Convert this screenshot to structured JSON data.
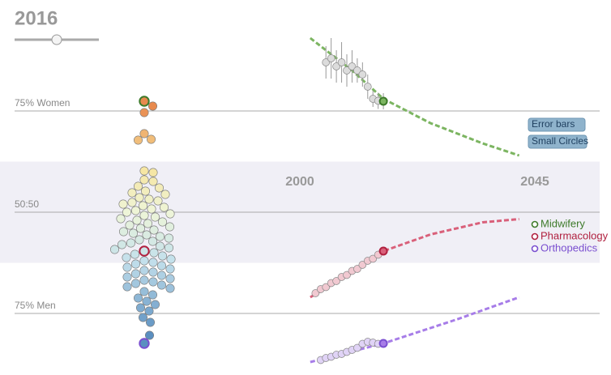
{
  "year_label": "2016",
  "buttons": [
    "Error bars",
    "Small Circles"
  ],
  "chart_data": {
    "type": "beeswarm",
    "ylim": [
      10,
      100
    ],
    "yticks": [
      {
        "value": 75,
        "label": "75% Women"
      },
      {
        "value": 50,
        "label": "50:50"
      },
      {
        "value": 25,
        "label": "75% Men"
      }
    ],
    "band": [
      37.5,
      62.5
    ],
    "xlim": [
      2000,
      2045
    ],
    "xticks": [
      2000,
      2045
    ],
    "color_stops": [
      {
        "value": 76,
        "color": "#e88a4e"
      },
      {
        "value": 62,
        "color": "#f7e39a"
      },
      {
        "value": 50,
        "color": "#eef5d8"
      },
      {
        "value": 38,
        "color": "#c3e0ec"
      },
      {
        "value": 20,
        "color": "#5b8fc0"
      }
    ],
    "values": [
      76.2,
      74.6,
      69.4,
      68.0,
      67.8,
      60.2,
      59.8,
      58.0,
      57.6,
      56.4,
      56.0,
      55.2,
      54.8,
      54.4,
      53.6,
      53.2,
      52.8,
      52.4,
      52.0,
      51.6,
      51.2,
      50.8,
      50.4,
      50.0,
      49.6,
      49.2,
      48.8,
      48.4,
      48.0,
      47.6,
      47.2,
      46.8,
      46.4,
      46.0,
      45.6,
      45.2,
      44.8,
      44.4,
      44.0,
      43.6,
      43.2,
      42.8,
      42.4,
      42.0,
      41.6,
      41.2,
      40.8,
      40.0,
      39.6,
      39.2,
      38.8,
      38.4,
      38.0,
      37.6,
      37.2,
      36.8,
      36.4,
      36.0,
      35.6,
      35.2,
      34.8,
      34.4,
      34.0,
      33.6,
      33.2,
      32.8,
      32.4,
      32.0,
      31.6,
      31.2,
      30.4,
      29.6,
      28.8,
      28.0,
      27.2,
      26.4,
      25.6,
      24.0,
      22.8,
      19.6
    ],
    "series": [
      {
        "name": "Midwifery",
        "color": "#3d7a2a",
        "trend_color": "#7cb561",
        "point_color": "#dcdcdc",
        "x": [
          2005,
          2006,
          2007,
          2008,
          2009,
          2010,
          2011,
          2012,
          2013,
          2014,
          2015,
          2016
        ],
        "values": [
          87,
          88,
          86,
          87,
          85,
          86,
          85,
          84,
          81,
          78,
          77.5,
          77.4
        ],
        "errors": [
          4,
          5,
          4,
          5,
          4,
          4,
          3,
          3,
          3,
          2,
          2,
          2
        ],
        "trend": {
          "x": [
            2002,
            2010,
            2016,
            2025,
            2035,
            2042
          ],
          "values": [
            93,
            85,
            78,
            72,
            67,
            64
          ]
        }
      },
      {
        "name": "Pharmacology",
        "color": "#b0203f",
        "trend_color": "#d9607a",
        "point_color": "#f1c9d1",
        "x": [
          2003,
          2004,
          2005,
          2006,
          2007,
          2008,
          2009,
          2010,
          2011,
          2012,
          2013,
          2014,
          2015,
          2016
        ],
        "values": [
          30,
          31,
          31.5,
          32.5,
          33,
          34,
          34.5,
          35.5,
          36,
          37,
          38,
          38.5,
          39.5,
          40.4
        ],
        "trend": {
          "x": [
            2002,
            2010,
            2016,
            2025,
            2035,
            2042
          ],
          "values": [
            29,
            35,
            40.4,
            44.5,
            47.5,
            48.3
          ]
        }
      },
      {
        "name": "Orthopedics",
        "color": "#7a4fd0",
        "trend_color": "#a77de8",
        "point_color": "#e0d3f6",
        "x": [
          2004,
          2005,
          2006,
          2007,
          2008,
          2009,
          2010,
          2011,
          2012,
          2013,
          2014,
          2015,
          2016
        ],
        "values": [
          13.5,
          14,
          14.3,
          14.8,
          15,
          15.5,
          16,
          16.5,
          17.5,
          18,
          17.8,
          17.5,
          17.6
        ],
        "trend": {
          "x": [
            2002,
            2016,
            2030,
            2042
          ],
          "values": [
            13,
            17.6,
            23.5,
            29
          ]
        }
      }
    ]
  }
}
